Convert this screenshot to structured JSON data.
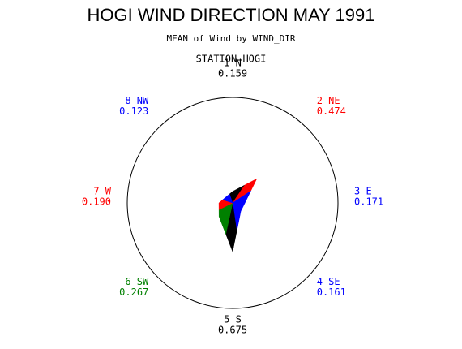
{
  "chart_data": {
    "type": "star",
    "title": "HOGI WIND DIRECTION MAY 1991",
    "subtitle": "MEAN of Wind by WIND_DIR",
    "group_label": "STATION=HOGI",
    "categories": [
      "1 N",
      "2 NE",
      "3 E",
      "4 SE",
      "5 S",
      "6 SW",
      "7 W",
      "8 NW"
    ],
    "values": [
      0.159,
      0.474,
      0.171,
      0.161,
      0.675,
      0.267,
      0.19,
      0.123
    ],
    "value_labels": [
      "0.159",
      "0.474",
      "0.171",
      "0.161",
      "0.675",
      "0.267",
      "0.190",
      "0.123"
    ],
    "colors": [
      "#000000",
      "#ff0000",
      "#0000ff",
      "#0000ff",
      "#000000",
      "#008000",
      "#ff0000",
      "#0000ff"
    ]
  }
}
